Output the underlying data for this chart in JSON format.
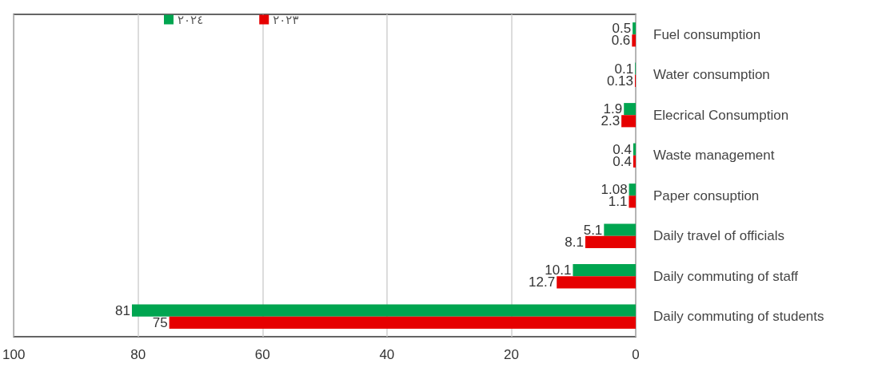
{
  "chart_data": {
    "type": "bar",
    "orientation": "horizontal",
    "categories": [
      "Fuel consumption",
      "Water consumption",
      "Elecrical Consumption",
      "Waste management",
      "Paper consuption",
      "Daily travel of officials",
      "Daily commuting of staff",
      "Daily commuting of students"
    ],
    "series": [
      {
        "name": "٢٠٢٤",
        "color": "#00a550",
        "values": [
          0.5,
          0.1,
          1.9,
          0.4,
          1.08,
          5.1,
          10.1,
          81
        ]
      },
      {
        "name": "٢٠٢٣",
        "color": "#e60000",
        "values": [
          0.6,
          0.13,
          2.3,
          0.4,
          1.1,
          8.1,
          12.7,
          75
        ]
      }
    ],
    "xlim": [
      100,
      0
    ],
    "xticks": [
      100,
      80,
      60,
      40,
      20,
      0
    ],
    "grid": "x",
    "legend": "top",
    "data_labels": true
  }
}
